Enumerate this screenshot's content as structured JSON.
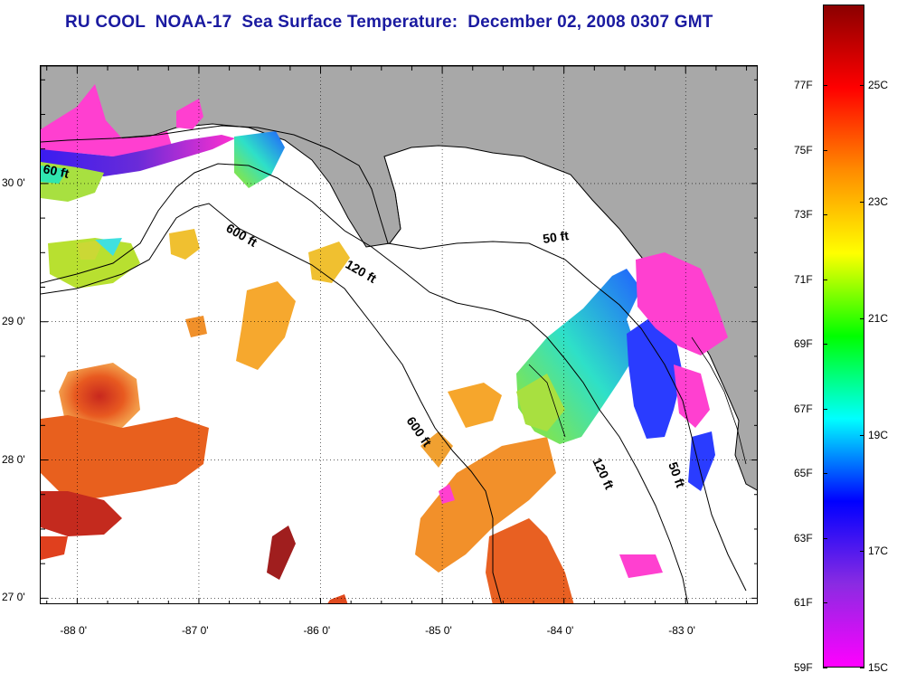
{
  "title": "RU COOL  NOAA-17  Sea Surface Temperature:  December 02, 2008 0307 GMT",
  "map": {
    "lon_range": [
      -88.3,
      -82.4
    ],
    "lat_range": [
      26.95,
      30.85
    ],
    "lat_ticks": [
      {
        "value": 30.0,
        "label": "30 0'"
      },
      {
        "value": 29.0,
        "label": "29 0'"
      },
      {
        "value": 28.0,
        "label": "28 0'"
      },
      {
        "value": 27.0,
        "label": "27 0'"
      }
    ],
    "lon_ticks": [
      {
        "value": -88.0,
        "label": "-88 0'"
      },
      {
        "value": -87.0,
        "label": "-87 0'"
      },
      {
        "value": -86.0,
        "label": "-86 0'"
      },
      {
        "value": -85.0,
        "label": "-85 0'"
      },
      {
        "value": -84.0,
        "label": "-84 0'"
      },
      {
        "value": -83.0,
        "label": "-83 0'"
      }
    ],
    "contour_labels": [
      "60 ft",
      "600 ft",
      "120 ft",
      "50 ft",
      "600 ft",
      "120 ft",
      "50 ft"
    ],
    "land_color": "#a8a8a8"
  },
  "colorbar": {
    "fahrenheit_labels": [
      "77F",
      "75F",
      "73F",
      "71F",
      "69F",
      "67F",
      "65F",
      "63F",
      "61F",
      "59F"
    ],
    "celsius_labels": [
      "25C",
      "23C",
      "21C",
      "19C",
      "17C",
      "15C"
    ],
    "f_range": [
      59,
      79.5
    ],
    "colors_top_to_bottom": [
      "#8b0000",
      "#ff0000",
      "#ff8c00",
      "#ffff00",
      "#00ff00",
      "#00ffff",
      "#0000ff",
      "#8a2be2",
      "#ff00ff"
    ]
  }
}
